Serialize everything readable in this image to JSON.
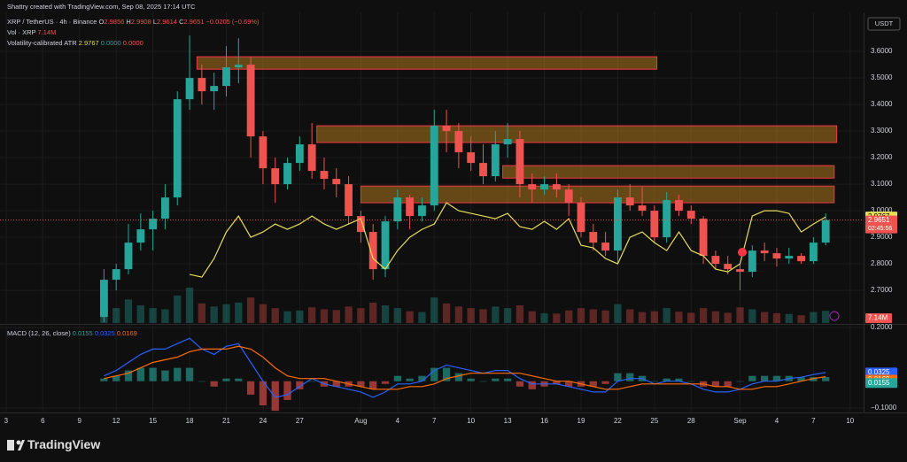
{
  "header": {
    "credit": "Shattry created with TradingView.com, Sep 08, 2025 17:14 UTC",
    "currency": "USDT",
    "symbol": "XRP / TetherUS · 4h · Binance",
    "ohlc": [
      {
        "label": "O",
        "value": 2.9856
      },
      {
        "label": "H",
        "value": 2.9908
      },
      {
        "label": "L",
        "value": 2.9614
      },
      {
        "label": "C",
        "value": 2.9651
      }
    ],
    "change": "−0.0205 (−0.69%)",
    "volume_title": "Vol · XRP",
    "volume_value": "7.14M",
    "atr_zero_1": "0.0000",
    "atr_zero_2": "0.0000",
    "footer": "TradingView"
  },
  "chart_data": [
    {
      "type": "candlestick",
      "title": "Volatility-calibrated ATR",
      "x": [
        8,
        9,
        10,
        11,
        12,
        13,
        14,
        15,
        16,
        17,
        18,
        19,
        20,
        21,
        22,
        23,
        24,
        25,
        26,
        27,
        28,
        29,
        30,
        31,
        32,
        33,
        34,
        35,
        36,
        37,
        38,
        39,
        40,
        41,
        42,
        43,
        44,
        45,
        46,
        47,
        48,
        49,
        50,
        51,
        52,
        53,
        54,
        55,
        56,
        57,
        58,
        59,
        60,
        61,
        62,
        63,
        64,
        65,
        66,
        67
      ],
      "open": [
        2.6,
        2.74,
        2.78,
        2.88,
        2.93,
        2.97,
        3.05,
        3.42,
        3.5,
        3.45,
        3.47,
        3.54,
        3.55,
        3.28,
        3.16,
        3.1,
        3.18,
        3.25,
        3.15,
        3.12,
        3.1,
        2.98,
        2.92,
        2.78,
        2.96,
        3.05,
        2.98,
        3.02,
        3.32,
        3.3,
        3.22,
        3.18,
        3.13,
        3.25,
        3.27,
        3.1,
        3.08,
        3.1,
        3.08,
        3.03,
        2.92,
        2.88,
        2.85,
        3.05,
        3.02,
        3.0,
        2.9,
        3.04,
        3.0,
        2.97,
        2.83,
        2.8,
        2.78,
        2.77,
        2.85,
        2.84,
        2.82,
        2.83,
        2.81,
        2.88
      ],
      "high": [
        2.78,
        2.8,
        2.95,
        2.99,
        3.0,
        3.1,
        3.45,
        3.66,
        3.55,
        3.52,
        3.62,
        3.65,
        3.58,
        3.3,
        3.2,
        3.2,
        3.28,
        3.33,
        3.2,
        3.16,
        3.13,
        3.0,
        2.95,
        2.98,
        3.08,
        3.06,
        3.05,
        3.38,
        3.38,
        3.33,
        3.28,
        3.25,
        3.3,
        3.33,
        3.3,
        3.14,
        3.13,
        3.14,
        3.1,
        3.05,
        2.95,
        2.92,
        3.08,
        3.1,
        3.09,
        3.02,
        3.07,
        3.06,
        3.02,
        2.98,
        2.85,
        2.83,
        2.8,
        2.87,
        2.88,
        2.86,
        2.86,
        2.84,
        2.9,
        2.99
      ],
      "low": [
        2.58,
        2.7,
        2.76,
        2.85,
        2.85,
        2.93,
        3.02,
        3.38,
        3.4,
        3.38,
        3.43,
        3.48,
        3.2,
        3.1,
        3.03,
        3.08,
        3.15,
        3.12,
        3.08,
        3.05,
        2.95,
        2.88,
        2.74,
        2.75,
        2.93,
        2.93,
        2.96,
        3.0,
        3.22,
        3.16,
        3.15,
        3.1,
        3.11,
        3.2,
        3.05,
        3.03,
        3.06,
        3.05,
        2.98,
        2.9,
        2.85,
        2.83,
        2.8,
        3.0,
        2.98,
        2.88,
        2.88,
        2.98,
        2.95,
        2.8,
        2.78,
        2.76,
        2.7,
        2.75,
        2.81,
        2.79,
        2.8,
        2.8,
        2.8,
        2.87
      ],
      "close": [
        2.74,
        2.78,
        2.88,
        2.93,
        2.97,
        3.05,
        3.42,
        3.5,
        3.45,
        3.47,
        3.54,
        3.55,
        3.28,
        3.16,
        3.1,
        3.18,
        3.25,
        3.15,
        3.12,
        3.1,
        2.98,
        2.92,
        2.78,
        2.96,
        3.05,
        2.98,
        3.02,
        3.32,
        3.3,
        3.22,
        3.18,
        3.13,
        3.25,
        3.27,
        3.1,
        3.08,
        3.1,
        3.08,
        3.03,
        2.92,
        2.88,
        2.85,
        3.05,
        3.02,
        3.0,
        2.9,
        3.04,
        3.0,
        2.97,
        2.83,
        2.8,
        2.78,
        2.77,
        2.85,
        2.84,
        2.82,
        2.83,
        2.81,
        2.88,
        2.9651
      ],
      "volume": [
        420,
        380,
        600,
        450,
        380,
        350,
        700,
        900,
        500,
        420,
        480,
        520,
        650,
        480,
        380,
        300,
        320,
        400,
        350,
        330,
        420,
        380,
        520,
        450,
        380,
        300,
        280,
        650,
        500,
        420,
        380,
        350,
        420,
        380,
        450,
        300,
        250,
        240,
        320,
        380,
        350,
        320,
        480,
        350,
        280,
        300,
        380,
        290,
        260,
        380,
        300,
        260,
        400,
        350,
        280,
        250,
        230,
        200,
        280,
        310
      ],
      "series": [
        {
          "name": "Volatility-calibrated ATR",
          "color": "#e6dd5b",
          "values": [
            null,
            null,
            null,
            null,
            null,
            null,
            null,
            2.76,
            2.75,
            2.82,
            2.92,
            2.98,
            2.9,
            2.92,
            2.95,
            2.93,
            2.95,
            2.98,
            2.95,
            2.93,
            2.95,
            2.97,
            2.82,
            2.78,
            2.85,
            2.9,
            2.93,
            2.95,
            3.03,
            3.0,
            2.99,
            2.98,
            2.97,
            2.99,
            2.94,
            2.93,
            2.96,
            2.93,
            2.97,
            2.87,
            2.86,
            2.82,
            2.8,
            2.9,
            2.92,
            2.88,
            2.85,
            2.92,
            2.85,
            2.83,
            2.78,
            2.77,
            2.8,
            2.98,
            3.0,
            3.0,
            2.99,
            2.92,
            2.95,
            2.9767
          ]
        }
      ],
      "up_color": "#26a69a",
      "down_color": "#ef5350",
      "zones": [
        {
          "x": [
            15.6,
            53.2
          ],
          "y": [
            3.533,
            3.58
          ]
        },
        {
          "x": [
            25.4,
            67.9
          ],
          "y": [
            3.257,
            3.32
          ]
        },
        {
          "x": [
            40.6,
            67.7
          ],
          "y": [
            3.123,
            3.17
          ]
        },
        {
          "x": [
            29.0,
            67.7
          ],
          "y": [
            3.03,
            3.093
          ]
        }
      ],
      "countdown": "02:45:56",
      "xlim": [
        -0.5,
        70.1
      ],
      "xticks": [
        {
          "value": 0,
          "label": "3"
        },
        {
          "value": 3,
          "label": "6"
        },
        {
          "value": 6,
          "label": "9"
        },
        {
          "value": 9,
          "label": "12"
        },
        {
          "value": 12,
          "label": "15"
        },
        {
          "value": 15,
          "label": "18"
        },
        {
          "value": 18,
          "label": "21"
        },
        {
          "value": 21,
          "label": "24"
        },
        {
          "value": 24,
          "label": "27"
        },
        {
          "value": 29,
          "label": "Aug"
        },
        {
          "value": 32,
          "label": "4"
        },
        {
          "value": 35,
          "label": "7"
        },
        {
          "value": 38,
          "label": "10"
        },
        {
          "value": 41,
          "label": "13"
        },
        {
          "value": 44,
          "label": "16"
        },
        {
          "value": 47,
          "label": "19"
        },
        {
          "value": 50,
          "label": "22"
        },
        {
          "value": 53,
          "label": "25"
        },
        {
          "value": 56,
          "label": "28"
        },
        {
          "value": 60,
          "label": "Sep"
        },
        {
          "value": 63,
          "label": "4"
        },
        {
          "value": 66,
          "label": "7"
        },
        {
          "value": 69,
          "label": "10"
        }
      ],
      "ylim": [
        2.577,
        3.727
      ],
      "yticks": [
        {
          "value": 2.7,
          "label": "2.7000"
        },
        {
          "value": 2.8,
          "label": "2.8000"
        },
        {
          "value": 2.9,
          "label": "2.9000"
        },
        {
          "value": 3.0,
          "label": "3.0000"
        },
        {
          "value": 3.1,
          "label": "3.1000"
        },
        {
          "value": 3.2,
          "label": "3.2000"
        },
        {
          "value": 3.3,
          "label": "3.3000"
        },
        {
          "value": 3.4,
          "label": "3.4000"
        },
        {
          "value": 3.5,
          "label": "3.5000"
        },
        {
          "value": 3.6,
          "label": "3.6000"
        }
      ],
      "grid": true
    },
    {
      "type": "macd",
      "title": "MACD (12, 26, close)",
      "x": [
        8,
        9,
        10,
        11,
        12,
        13,
        14,
        15,
        16,
        17,
        18,
        19,
        20,
        21,
        22,
        23,
        24,
        25,
        26,
        27,
        28,
        29,
        30,
        31,
        32,
        33,
        34,
        35,
        36,
        37,
        38,
        39,
        40,
        41,
        42,
        43,
        44,
        45,
        46,
        47,
        48,
        49,
        50,
        51,
        52,
        53,
        54,
        55,
        56,
        57,
        58,
        59,
        60,
        61,
        62,
        63,
        64,
        65,
        66,
        67
      ],
      "histogram": [
        0.01,
        0.02,
        0.04,
        0.05,
        0.05,
        0.04,
        0.05,
        0.05,
        0.0,
        -0.02,
        0.01,
        0.01,
        -0.05,
        -0.09,
        -0.11,
        -0.07,
        -0.03,
        0.0,
        -0.02,
        -0.02,
        -0.02,
        -0.02,
        -0.03,
        -0.01,
        0.02,
        0.01,
        0.02,
        0.05,
        0.05,
        0.03,
        0.01,
        0.0,
        0.01,
        0.01,
        -0.02,
        -0.03,
        -0.02,
        -0.01,
        -0.02,
        -0.02,
        -0.02,
        -0.01,
        0.03,
        0.03,
        0.02,
        0.0,
        0.01,
        0.01,
        0.0,
        -0.02,
        -0.02,
        -0.02,
        0.0,
        0.02,
        0.02,
        0.02,
        0.02,
        0.015,
        0.015,
        0.0155
      ],
      "histogram_colors": [
        "#26a69a",
        "#ef5350"
      ],
      "series": [
        {
          "name": "MACD",
          "color": "#2962ff",
          "values": [
            0.02,
            0.04,
            0.07,
            0.1,
            0.12,
            0.12,
            0.14,
            0.16,
            0.12,
            0.1,
            0.13,
            0.14,
            0.07,
            0.0,
            -0.06,
            -0.05,
            -0.02,
            0.01,
            -0.01,
            -0.02,
            -0.03,
            -0.04,
            -0.06,
            -0.04,
            -0.01,
            -0.01,
            0.0,
            0.04,
            0.06,
            0.05,
            0.04,
            0.03,
            0.04,
            0.04,
            0.01,
            -0.01,
            -0.01,
            -0.01,
            -0.02,
            -0.03,
            -0.04,
            -0.04,
            0.0,
            0.01,
            0.01,
            -0.01,
            0.0,
            0.0,
            -0.01,
            -0.03,
            -0.04,
            -0.04,
            -0.03,
            -0.01,
            0.0,
            0.0,
            0.01,
            0.015,
            0.025,
            0.0325
          ]
        },
        {
          "name": "Signal",
          "color": "#ff6d00",
          "values": [
            0.01,
            0.02,
            0.03,
            0.05,
            0.07,
            0.08,
            0.09,
            0.11,
            0.12,
            0.12,
            0.12,
            0.13,
            0.12,
            0.09,
            0.05,
            0.02,
            0.01,
            0.01,
            0.01,
            0.0,
            -0.01,
            -0.02,
            -0.03,
            -0.03,
            -0.03,
            -0.02,
            -0.02,
            -0.01,
            0.01,
            0.02,
            0.03,
            0.03,
            0.03,
            0.03,
            0.03,
            0.02,
            0.01,
            0.0,
            0.0,
            -0.01,
            -0.02,
            -0.03,
            -0.03,
            -0.02,
            -0.01,
            -0.01,
            -0.01,
            -0.01,
            -0.01,
            -0.01,
            -0.02,
            -0.02,
            -0.03,
            -0.03,
            -0.02,
            -0.02,
            -0.01,
            0.0,
            0.01,
            0.0169
          ]
        }
      ],
      "xlim": [
        -0.5,
        70.1
      ],
      "ylim": [
        -0.113,
        0.207
      ],
      "yticks": [
        {
          "value": -0.1,
          "label": "−0.1000"
        },
        {
          "value": 0.2,
          "label": "0.2000"
        }
      ]
    }
  ]
}
